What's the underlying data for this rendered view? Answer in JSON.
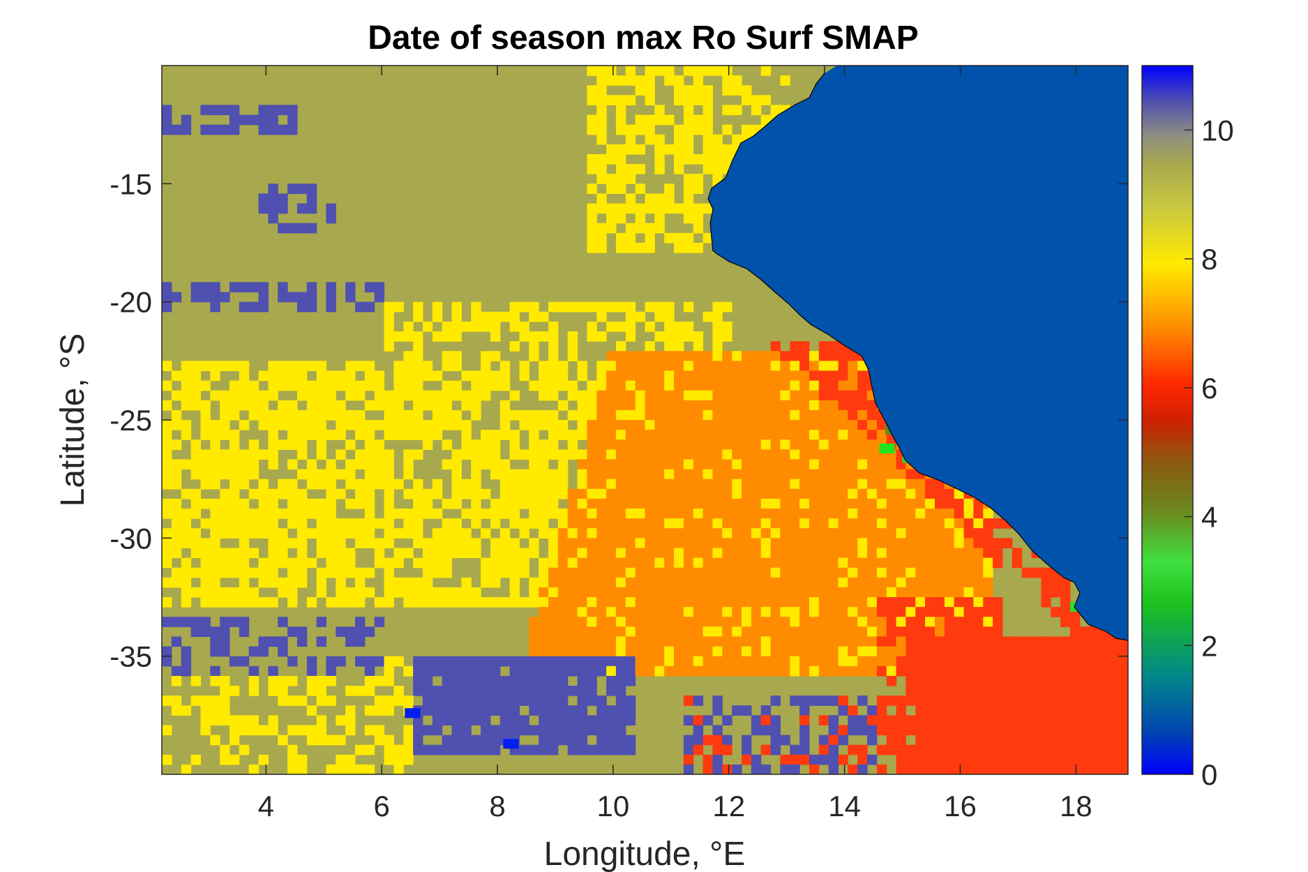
{
  "chart_data": {
    "type": "heatmap",
    "title": "Date of season max Ro Surf SMAP",
    "xlabel": "Longitude, °E",
    "ylabel": "Latitude, °S",
    "xlim": [
      2.2,
      18.9
    ],
    "ylim": [
      -40,
      -10
    ],
    "xticks": [
      4,
      6,
      8,
      10,
      12,
      14,
      16,
      18
    ],
    "xtick_labels": [
      "4",
      "6",
      "8",
      "10",
      "12",
      "14",
      "16",
      "18"
    ],
    "yticks": [
      -15,
      -20,
      -25,
      -30,
      -35
    ],
    "ytick_labels": [
      "-15",
      "-20",
      "-25",
      "-30",
      "-35"
    ],
    "colorbar": {
      "range": [
        0,
        11
      ],
      "ticks": [
        0,
        2,
        4,
        6,
        8,
        10
      ],
      "tick_labels": [
        "0",
        "2",
        "4",
        "6",
        "8",
        "10"
      ],
      "colormap": "parula-jet-like"
    },
    "land_value": 1,
    "land_color": "#0052ab",
    "category_colors": {
      "1": "#0052ab",
      "3": "#21e321",
      "4": "#6b8a1f",
      "6": "#ff2800",
      "6.2": "#ff3a0f",
      "7": "#ff8c00",
      "8": "#ffea00",
      "9": "#a8a84e",
      "10": "#4f50b0",
      "0.3": "#0020f0"
    },
    "regions_description_values": {
      "northwest_ocean": 9,
      "scattered_patches": 10,
      "central_band": 8,
      "eastern_shelf": 7,
      "south_east_coast": 6,
      "south_west_band": 10
    }
  }
}
